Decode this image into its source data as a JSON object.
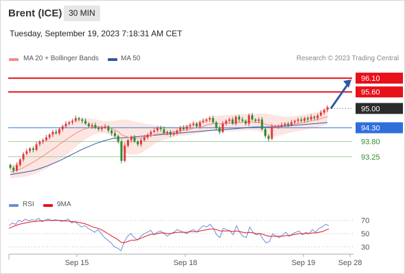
{
  "header": {
    "instrument": "Brent (ICE)",
    "timeframe": "30 MIN"
  },
  "timestamp": "Tuesday, September 19, 2023 7:18:31 AM CET",
  "legend": {
    "items": [
      {
        "label": "MA 20 + Bollinger Bands",
        "color": "#f28b82"
      },
      {
        "label": "MA 50",
        "color": "#2c5aa0"
      }
    ],
    "credit": "Research © 2023 Trading Central"
  },
  "rsi_legend": {
    "items": [
      {
        "label": "RSI",
        "color": "#6b8ed6"
      },
      {
        "label": "9MA",
        "color": "#e8101a"
      }
    ]
  },
  "chart_data": [
    {
      "type": "candlestick",
      "title": "Brent (ICE)",
      "timeframe": "30 MIN",
      "x_ticks": [
        "Sep 15",
        "Sep 18",
        "Sep 19",
        "Sep 28"
      ],
      "ylim": [
        92.2,
        96.4
      ],
      "resistance": [
        96.1,
        95.6
      ],
      "last_price": 95.0,
      "pivot": 94.3,
      "support": [
        93.8,
        93.25
      ],
      "levels": [
        {
          "value": 96.1,
          "label": "96.10",
          "role": "resistance",
          "line": "#e8101a",
          "badge": "#e8101a",
          "text_color": "#ffffff"
        },
        {
          "value": 95.6,
          "label": "95.60",
          "role": "resistance",
          "line": "#e8101a",
          "badge": "#e8101a",
          "text_color": "#ffffff"
        },
        {
          "value": 95.0,
          "label": "95.00",
          "role": "last",
          "line": "#555555",
          "badge": "#2b2b2b",
          "text_color": "#ffffff"
        },
        {
          "value": 94.3,
          "label": "94.30",
          "role": "pivot",
          "line": "#5b8fe0",
          "badge": "#2f6fdc",
          "text_color": "#ffffff"
        },
        {
          "value": 93.8,
          "label": "93.80",
          "role": "support",
          "line": "#9ccf9c",
          "badge": null,
          "text_color": "#2e8b2e"
        },
        {
          "value": 93.25,
          "label": "93.25",
          "role": "support",
          "line": "#9ccf9c",
          "badge": null,
          "text_color": "#2e8b2e"
        }
      ],
      "candles_close": [
        92.85,
        92.75,
        92.95,
        93.15,
        93.35,
        93.45,
        93.55,
        93.5,
        93.7,
        93.8,
        93.85,
        93.95,
        94.05,
        94.15,
        94.1,
        94.25,
        94.35,
        94.45,
        94.5,
        94.55,
        94.65,
        94.6,
        94.55,
        94.45,
        94.35,
        94.4,
        94.3,
        94.25,
        94.3,
        94.35,
        94.2,
        94.1,
        94.0,
        93.8,
        93.1,
        93.65,
        93.85,
        93.95,
        93.8,
        93.7,
        93.85,
        93.95,
        94.05,
        94.15,
        94.2,
        94.3,
        94.25,
        94.1,
        94.15,
        94.05,
        94.1,
        94.2,
        94.3,
        94.25,
        94.35,
        94.4,
        94.45,
        94.35,
        94.5,
        94.55,
        94.6,
        94.65,
        94.5,
        94.3,
        94.15,
        94.45,
        94.55,
        94.6,
        94.45,
        94.7,
        94.6,
        94.55,
        94.45,
        94.75,
        94.6,
        94.55,
        94.6,
        94.25,
        94.0,
        93.9,
        94.35,
        94.35,
        94.35,
        94.4,
        94.45,
        94.4,
        94.5,
        94.55,
        94.6,
        94.55,
        94.65,
        94.6,
        94.7,
        94.65,
        94.75,
        94.85,
        94.95,
        95.05
      ],
      "ma20": [
        92.7,
        92.72,
        92.76,
        92.8,
        92.85,
        92.92,
        92.98,
        93.05,
        93.12,
        93.2,
        93.28,
        93.36,
        93.44,
        93.52,
        93.6,
        93.7,
        93.78,
        93.86,
        93.94,
        94.02,
        94.1,
        94.16,
        94.22,
        94.26,
        94.3,
        94.32,
        94.34,
        94.34,
        94.33,
        94.32,
        94.3,
        94.27,
        94.22,
        94.16,
        94.05,
        94.0,
        93.96,
        93.94,
        93.92,
        93.92,
        93.93,
        93.95,
        93.98,
        94.02,
        94.05,
        94.08,
        94.1,
        94.11,
        94.12,
        94.13,
        94.14,
        94.16,
        94.18,
        94.2,
        94.22,
        94.25,
        94.28,
        94.3,
        94.33,
        94.36,
        94.4,
        94.43,
        94.45,
        94.45,
        94.44,
        94.45,
        94.46,
        94.47,
        94.47,
        94.48,
        94.49,
        94.5,
        94.5,
        94.51,
        94.51,
        94.5,
        94.5,
        94.47,
        94.43,
        94.4,
        94.38,
        94.37,
        94.37,
        94.38,
        94.39,
        94.4,
        94.42,
        94.44,
        94.46,
        94.48,
        94.5,
        94.52,
        94.55,
        94.57,
        94.6,
        94.63,
        94.67,
        94.7
      ],
      "ma50": [
        92.6,
        92.62,
        92.64,
        92.66,
        92.68,
        92.7,
        92.72,
        92.75,
        92.78,
        92.82,
        92.86,
        92.9,
        92.95,
        93.0,
        93.05,
        93.1,
        93.16,
        93.22,
        93.28,
        93.34,
        93.4,
        93.46,
        93.52,
        93.57,
        93.62,
        93.67,
        93.72,
        93.76,
        93.8,
        93.84,
        93.87,
        93.9,
        93.92,
        93.93,
        93.93,
        93.94,
        93.95,
        93.96,
        93.97,
        93.98,
        93.99,
        94.0,
        94.01,
        94.02,
        94.03,
        94.04,
        94.05,
        94.06,
        94.07,
        94.08,
        94.09,
        94.1,
        94.11,
        94.12,
        94.13,
        94.14,
        94.15,
        94.16,
        94.17,
        94.18,
        94.19,
        94.2,
        94.21,
        94.22,
        94.22,
        94.23,
        94.24,
        94.25,
        94.26,
        94.27,
        94.28,
        94.29,
        94.3,
        94.31,
        94.32,
        94.33,
        94.33,
        94.33,
        94.33,
        94.33,
        94.33,
        94.34,
        94.34,
        94.35,
        94.36,
        94.37,
        94.38,
        94.39,
        94.4,
        94.41,
        94.42,
        94.43,
        94.44,
        94.45,
        94.46,
        94.47,
        94.48,
        94.49
      ],
      "band_halfwidth": [
        0.25,
        0.25,
        0.28,
        0.3,
        0.34,
        0.38,
        0.42,
        0.45,
        0.48,
        0.5,
        0.52,
        0.54,
        0.55,
        0.56,
        0.57,
        0.57,
        0.57,
        0.56,
        0.55,
        0.53,
        0.5,
        0.46,
        0.42,
        0.38,
        0.34,
        0.3,
        0.27,
        0.24,
        0.22,
        0.22,
        0.24,
        0.28,
        0.34,
        0.42,
        0.55,
        0.6,
        0.62,
        0.62,
        0.6,
        0.58,
        0.55,
        0.5,
        0.45,
        0.4,
        0.35,
        0.3,
        0.27,
        0.25,
        0.22,
        0.2,
        0.18,
        0.17,
        0.17,
        0.18,
        0.19,
        0.2,
        0.21,
        0.22,
        0.23,
        0.24,
        0.25,
        0.26,
        0.27,
        0.28,
        0.3,
        0.3,
        0.3,
        0.3,
        0.3,
        0.3,
        0.3,
        0.3,
        0.3,
        0.3,
        0.3,
        0.3,
        0.32,
        0.35,
        0.38,
        0.4,
        0.4,
        0.38,
        0.36,
        0.34,
        0.32,
        0.3,
        0.29,
        0.28,
        0.28,
        0.28,
        0.28,
        0.28,
        0.28,
        0.28,
        0.28,
        0.28,
        0.28,
        0.28
      ],
      "forecast_arrow": {
        "from": 95.0,
        "to": 96.1
      }
    },
    {
      "type": "line",
      "title": "RSI",
      "ylim": [
        20,
        80
      ],
      "y_ticks": [
        70,
        50,
        30
      ],
      "series": [
        {
          "name": "RSI",
          "color": "#6b8ed6",
          "values": [
            62,
            66,
            64,
            70,
            68,
            72,
            69,
            71,
            70,
            73,
            68,
            70,
            72,
            69,
            71,
            70,
            68,
            70,
            72,
            66,
            68,
            64,
            60,
            62,
            58,
            55,
            52,
            56,
            50,
            44,
            40,
            36,
            30,
            28,
            24,
            38,
            46,
            50,
            44,
            40,
            46,
            50,
            52,
            55,
            48,
            52,
            54,
            50,
            46,
            50,
            52,
            56,
            54,
            52,
            50,
            54,
            56,
            52,
            58,
            62,
            60,
            64,
            58,
            48,
            44,
            58,
            56,
            54,
            48,
            62,
            52,
            46,
            44,
            60,
            52,
            48,
            50,
            42,
            36,
            38,
            50,
            46,
            44,
            48,
            52,
            46,
            50,
            52,
            54,
            48,
            52,
            50,
            56,
            52,
            58,
            60,
            64,
            62
          ]
        },
        {
          "name": "9MA",
          "color": "#e8101a",
          "values": [
            58,
            60,
            62,
            64,
            65,
            66,
            67,
            68,
            68,
            69,
            69,
            70,
            70,
            70,
            70,
            70,
            70,
            69,
            69,
            68,
            68,
            67,
            66,
            65,
            63,
            61,
            59,
            58,
            56,
            53,
            50,
            47,
            44,
            41,
            37,
            36,
            38,
            40,
            40,
            41,
            43,
            45,
            47,
            49,
            49,
            50,
            51,
            51,
            50,
            50,
            51,
            52,
            52,
            52,
            52,
            53,
            53,
            53,
            54,
            55,
            56,
            57,
            57,
            56,
            54,
            54,
            54,
            54,
            53,
            54,
            53,
            52,
            51,
            52,
            51,
            50,
            50,
            49,
            47,
            46,
            46,
            46,
            46,
            46,
            47,
            47,
            48,
            49,
            50,
            50,
            50,
            50,
            51,
            51,
            52,
            53,
            55,
            57
          ]
        }
      ]
    }
  ]
}
